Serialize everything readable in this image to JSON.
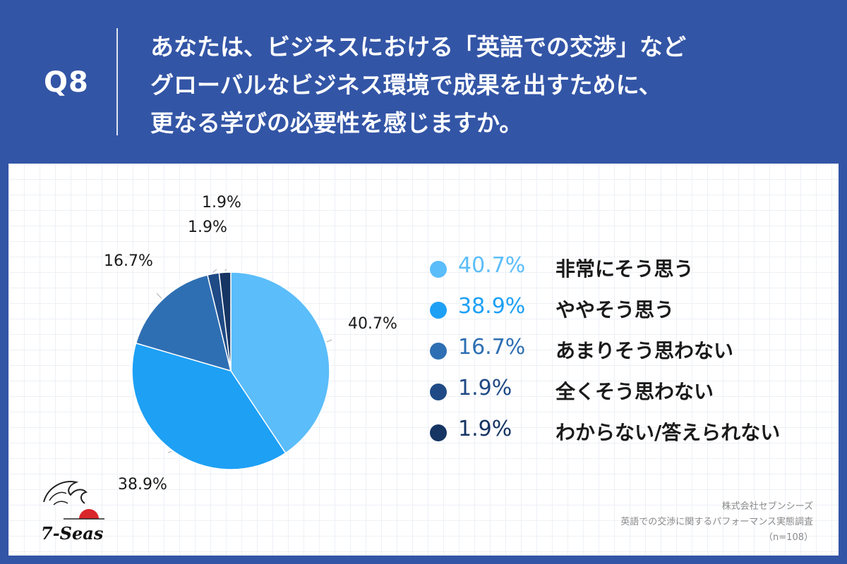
{
  "header": {
    "q_label": "Q8",
    "question_lines": [
      "あなたは、ビジネスにおける「英語での交渉」など",
      "グローバルなビジネス環境で成果を出すために、",
      "更なる学びの必要性を感じますか。"
    ]
  },
  "chart_data": {
    "type": "pie",
    "slices": [
      {
        "label": "非常にそう思う",
        "value": 40.7,
        "display": "40.7%",
        "color": "#5bbdfa"
      },
      {
        "label": "ややそう思う",
        "value": 38.9,
        "display": "38.9%",
        "color": "#1ea0f5"
      },
      {
        "label": "あまりそう思わない",
        "value": 16.7,
        "display": "16.7%",
        "color": "#2e6fb3"
      },
      {
        "label": "全くそう思わない",
        "value": 1.9,
        "display": "1.9%",
        "color": "#1f4a85"
      },
      {
        "label": "わからない/答えられない",
        "value": 1.9,
        "display": "1.9%",
        "color": "#163563"
      }
    ],
    "legend_position": "right",
    "start": "top, clockwise"
  },
  "colors": {
    "background": "#3355a6",
    "card": "#ffffff",
    "header_text": "#ffffff"
  },
  "footer": {
    "company": "株式会社セブンシーズ",
    "survey": "英語での交渉に関するパフォーマンス実態調査",
    "sample": "（n=108）"
  },
  "logo": {
    "text": "7-Seas",
    "icon": "wave-and-sun-icon"
  }
}
